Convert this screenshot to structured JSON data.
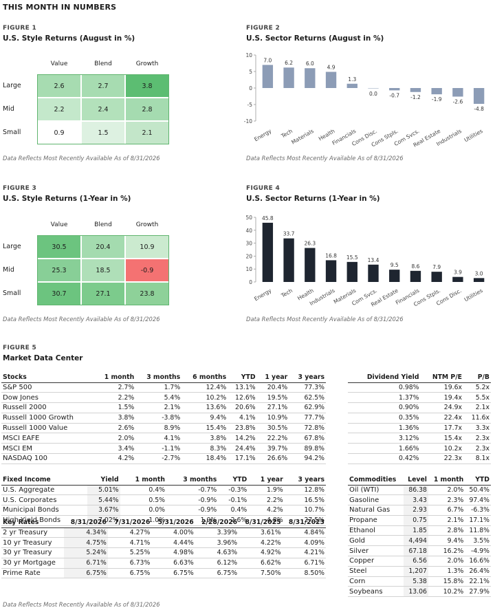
{
  "page": {
    "header": "THIS MONTH IN NUMBERS",
    "note": "Data Reflects Most Recently Available As of 8/31/2026"
  },
  "fig1": {
    "label": "FIGURE 1",
    "title": "U.S. Style Returns (August in %)",
    "cols": [
      "Value",
      "Blend",
      "Growth"
    ],
    "rows": [
      "Large",
      "Mid",
      "Small"
    ],
    "values": [
      [
        "2.6",
        "2.7",
        "3.8"
      ],
      [
        "2.2",
        "2.4",
        "2.8"
      ],
      [
        "0.9",
        "1.5",
        "2.1"
      ]
    ],
    "colors": [
      [
        "#a7dcb1",
        "#a7dcb1",
        "#5cbd72"
      ],
      [
        "#c4e8cb",
        "#b3e1bb",
        "#a5dbb0"
      ],
      [
        "#ffffff",
        "#ddf1e1",
        "#c3e6c9"
      ]
    ]
  },
  "fig2": {
    "label": "FIGURE 2",
    "title": "U.S. Sector Returns (August in %)",
    "chart_data": {
      "type": "bar",
      "categories": [
        "Energy",
        "Tech",
        "Materials",
        "Health",
        "Financials",
        "Cons Disc.",
        "Cons Stpls.",
        "Com Svcs.",
        "Real Estate",
        "Industrials",
        "Utilities"
      ],
      "values": [
        7.0,
        6.2,
        6.0,
        4.9,
        1.3,
        0.0,
        -0.7,
        -1.2,
        -1.9,
        -2.6,
        -4.8
      ],
      "labels": [
        "7.0",
        "6.2",
        "6.0",
        "4.9",
        "1.3",
        "0.0",
        "-0.7",
        "-1.2",
        "-1.9",
        "-2.6",
        "-4.8"
      ],
      "ylim": [
        -10,
        10
      ],
      "yticks": [
        10,
        5,
        0,
        -5,
        -10
      ],
      "yticklabels": [
        "10",
        "5",
        "0",
        "-5",
        "-10"
      ],
      "color": "#8c9cb6"
    }
  },
  "fig3": {
    "label": "FIGURE 3",
    "title": "U.S. Style Returns (1-Year in %)",
    "cols": [
      "Value",
      "Blend",
      "Growth"
    ],
    "rows": [
      "Large",
      "Mid",
      "Small"
    ],
    "values": [
      [
        "30.5",
        "20.4",
        "10.9"
      ],
      [
        "25.3",
        "18.5",
        "-0.9"
      ],
      [
        "30.7",
        "27.1",
        "23.8"
      ]
    ],
    "colors": [
      [
        "#6cc47f",
        "#a4dbaf",
        "#cbeacf"
      ],
      [
        "#88cf97",
        "#afdfb8",
        "#f47272"
      ],
      [
        "#6cc47f",
        "#7ccb8c",
        "#8ed199"
      ]
    ]
  },
  "fig4": {
    "label": "FIGURE 4",
    "title": "U.S. Sector Returns (1-Year in %)",
    "chart_data": {
      "type": "bar",
      "categories": [
        "Energy",
        "Tech",
        "Health",
        "Industrials",
        "Materials",
        "Com Svcs.",
        "Real Estate",
        "Financials",
        "Cons Stpls.",
        "Cons Disc.",
        "Utilities"
      ],
      "values": [
        45.8,
        33.7,
        26.3,
        16.8,
        15.5,
        13.4,
        9.5,
        8.6,
        7.9,
        3.9,
        3.0
      ],
      "labels": [
        "45.8",
        "33.7",
        "26.3",
        "16.8",
        "15.5",
        "13.4",
        "9.5",
        "8.6",
        "7.9",
        "3.9",
        "3.0"
      ],
      "ylim": [
        0,
        50
      ],
      "yticks": [
        50,
        40,
        30,
        20,
        10,
        0
      ],
      "yticklabels": [
        "50",
        "40",
        "30",
        "20",
        "10",
        "0"
      ],
      "color": "#1e2530"
    }
  },
  "fig5": {
    "label": "FIGURE 5",
    "title": "Market Data Center",
    "stocks": {
      "headers": [
        "Stocks",
        "1 month",
        "3 months",
        "6 months",
        "YTD",
        "1 year",
        "3 years"
      ],
      "rows": [
        [
          "S&P 500",
          "2.7%",
          "1.7%",
          "12.4%",
          "13.1%",
          "20.4%",
          "77.3%"
        ],
        [
          "Dow Jones",
          "2.2%",
          "5.4%",
          "10.2%",
          "12.6%",
          "19.5%",
          "62.5%"
        ],
        [
          "Russell 2000",
          "1.5%",
          "2.1%",
          "13.6%",
          "20.6%",
          "27.1%",
          "62.9%"
        ],
        [
          "Russell 1000 Growth",
          "3.8%",
          "-3.8%",
          "9.4%",
          "4.1%",
          "10.9%",
          "77.7%"
        ],
        [
          "Russell 1000 Value",
          "2.6%",
          "8.9%",
          "15.4%",
          "23.8%",
          "30.5%",
          "72.8%"
        ],
        [
          "MSCI EAFE",
          "2.0%",
          "4.1%",
          "3.8%",
          "14.2%",
          "22.2%",
          "67.8%"
        ],
        [
          "MSCI EM",
          "3.4%",
          "-1.1%",
          "8.3%",
          "24.4%",
          "39.7%",
          "89.8%"
        ],
        [
          "NASDAQ 100",
          "4.2%",
          "-2.7%",
          "18.4%",
          "17.1%",
          "26.6%",
          "94.2%"
        ]
      ]
    },
    "valuation": {
      "headers": [
        "Dividend Yield",
        "NTM P/E",
        "P/B"
      ],
      "rows": [
        [
          "0.98%",
          "19.6x",
          "5.2x"
        ],
        [
          "1.37%",
          "19.4x",
          "5.5x"
        ],
        [
          "0.90%",
          "24.9x",
          "2.1x"
        ],
        [
          "0.35%",
          "22.4x",
          "11.6x"
        ],
        [
          "1.36%",
          "17.7x",
          "3.3x"
        ],
        [
          "3.12%",
          "15.4x",
          "2.3x"
        ],
        [
          "1.66%",
          "10.2x",
          "2.3x"
        ],
        [
          "0.42%",
          "22.3x",
          "8.1x"
        ]
      ]
    },
    "fixed_income": {
      "headers": [
        "Fixed Income",
        "Yield",
        "1 month",
        "3 months",
        "YTD",
        "1 year",
        "3 years"
      ],
      "rows": [
        [
          "U.S. Aggregate",
          "5.01%",
          "0.4%",
          "-0.7%",
          "-0.3%",
          "1.9%",
          "12.8%"
        ],
        [
          "U.S. Corporates",
          "5.44%",
          "0.5%",
          "-0.9%",
          "-0.1%",
          "2.2%",
          "16.5%"
        ],
        [
          "Municipal Bonds",
          "3.67%",
          "0.0%",
          "-0.9%",
          "0.4%",
          "4.2%",
          "10.7%"
        ],
        [
          "High Yield Bonds",
          "7.02%",
          "1.0%",
          "1.0%",
          "2.6%",
          "4.8%",
          "27.5%"
        ]
      ]
    },
    "key_rates": {
      "headers": [
        "Key Rates",
        "8/31/2026",
        "7/31/2026",
        "5/31/2026",
        "2/28/2026",
        "8/31/2025",
        "8/31/2023"
      ],
      "rows": [
        [
          "2 yr Treasury",
          "4.34%",
          "4.27%",
          "4.00%",
          "3.39%",
          "3.61%",
          "4.84%"
        ],
        [
          "10 yr Treasury",
          "4.75%",
          "4.71%",
          "4.44%",
          "3.96%",
          "4.22%",
          "4.09%"
        ],
        [
          "30 yr Treasury",
          "5.24%",
          "5.25%",
          "4.98%",
          "4.63%",
          "4.92%",
          "4.21%"
        ],
        [
          "30 yr Mortgage",
          "6.71%",
          "6.73%",
          "6.63%",
          "6.12%",
          "6.62%",
          "6.71%"
        ],
        [
          "Prime Rate",
          "6.75%",
          "6.75%",
          "6.75%",
          "6.75%",
          "7.50%",
          "8.50%"
        ]
      ]
    },
    "commodities": {
      "headers": [
        "Commodities",
        "Level",
        "1 month",
        "YTD"
      ],
      "rows": [
        [
          "Oil (WTI)",
          "86.38",
          "2.0%",
          "50.4%"
        ],
        [
          "Gasoline",
          "3.43",
          "2.3%",
          "97.4%"
        ],
        [
          "Natural Gas",
          "2.93",
          "6.7%",
          "-6.3%"
        ],
        [
          "Propane",
          "0.75",
          "2.1%",
          "17.1%"
        ],
        [
          "Ethanol",
          "1.85",
          "2.8%",
          "11.8%"
        ],
        [
          "Gold",
          "4,494",
          "9.4%",
          "3.5%"
        ],
        [
          "Silver",
          "67.18",
          "16.2%",
          "-4.9%"
        ],
        [
          "Copper",
          "6.56",
          "2.0%",
          "16.6%"
        ],
        [
          "Steel",
          "1,207",
          "1.3%",
          "26.4%"
        ],
        [
          "Corn",
          "5.38",
          "15.8%",
          "22.1%"
        ],
        [
          "Soybeans",
          "13.06",
          "10.2%",
          "27.9%"
        ]
      ]
    }
  }
}
